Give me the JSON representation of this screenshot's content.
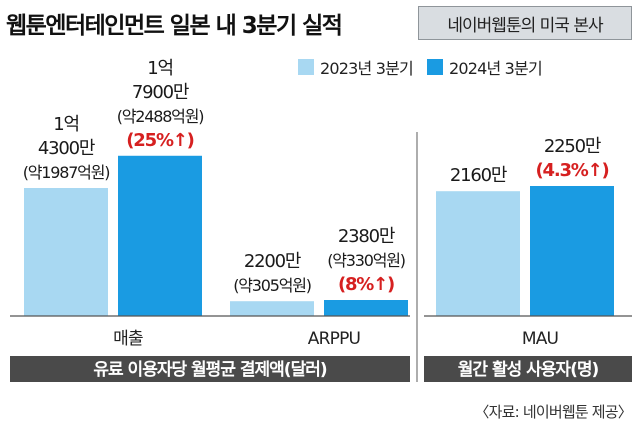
{
  "title": "웹툰엔터테인먼트 일본 내 3분기 실적",
  "subtitle": "네이버웹툰의 미국 본사",
  "source": "〈자료: 네이버웹툰 제공〉",
  "colors": {
    "series_2023": "#a8d8f2",
    "series_2024": "#1a9be2",
    "band": "#4a4a4a",
    "accent": "#d62020",
    "axis": "#555555"
  },
  "chart_data": {
    "type": "bar",
    "series": [
      {
        "name": "2023년 3분기"
      },
      {
        "name": "2024년 3분기"
      }
    ],
    "groups": [
      {
        "category": "매출",
        "values": [
          14300,
          17900
        ],
        "labels": [
          [
            "1억",
            "4300만",
            "(약1987억원)"
          ],
          [
            "1억",
            "7900만",
            "(약2488억원)",
            "(25%↑)"
          ]
        ]
      },
      {
        "category": "ARPPU",
        "values": [
          2200,
          2380
        ],
        "labels": [
          [
            "2200만",
            "(약305억원)"
          ],
          [
            "2380만",
            "(약330억원)",
            "(8%↑)"
          ]
        ]
      },
      {
        "category": "MAU",
        "values": [
          2160,
          2250
        ],
        "labels": [
          [
            "2160만"
          ],
          [
            "2250만",
            "(4.3%↑)"
          ]
        ]
      }
    ],
    "bands": [
      "유료 이용자당 월평균 결제액(달러)",
      "월간 활성 사용자(명)"
    ]
  }
}
